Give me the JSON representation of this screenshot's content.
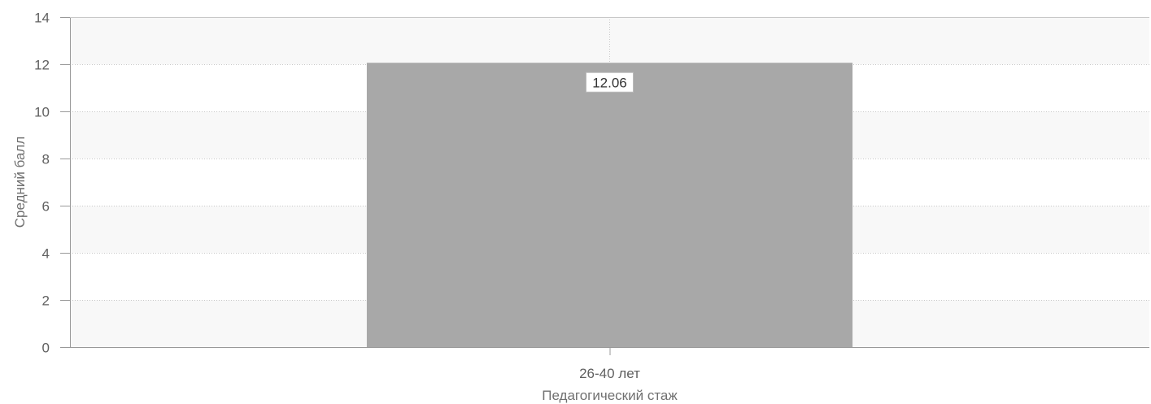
{
  "colors": {
    "bar": "#a8a8a8",
    "band_light": "#f8f8f8",
    "band_white": "#ffffff",
    "grid": "#c8c8c8",
    "axis": "#999999"
  },
  "chart_data": {
    "type": "bar",
    "categories": [
      "26-40 лет"
    ],
    "values": [
      12.06
    ],
    "data_labels": [
      "12.06"
    ],
    "title": "",
    "xlabel": "Педагогический стаж",
    "ylabel": "Средний балл",
    "ylim": [
      0,
      14
    ],
    "yticks": [
      0,
      2,
      4,
      6,
      8,
      10,
      12,
      14
    ],
    "grid": true,
    "legend": "none"
  }
}
